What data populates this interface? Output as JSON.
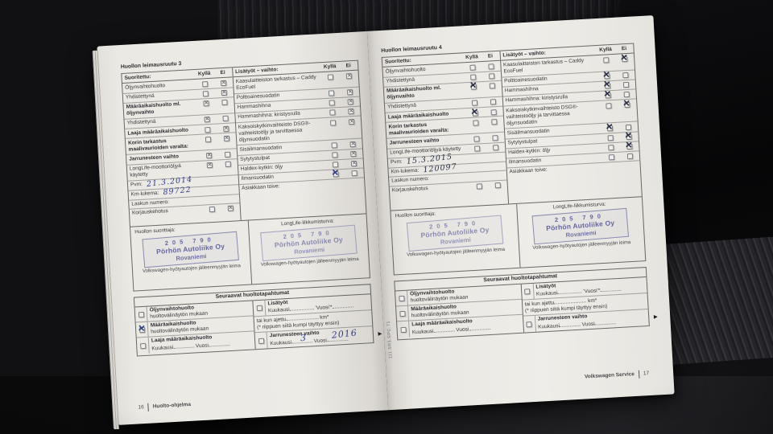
{
  "photo": {
    "background_color": "#111113",
    "paper_color": "#edebe6",
    "stamp_color": "#64659f",
    "red_sticker_color": "#8f2a26"
  },
  "shared": {
    "columns": {
      "performed": "Suoritettu:",
      "yes": "Kyllä",
      "no": "Ei",
      "extras": "Lisätyöt – vaihto:"
    },
    "performed_rows": [
      {
        "label": "Öljynvaihtohuolto",
        "bold": false
      },
      {
        "label": "Yhdistettynä",
        "bold": false
      },
      {
        "label": "Määräaikaishuolto ml. öljynvaihto",
        "bold": true
      },
      {
        "label": "Yhdistettynä",
        "bold": false
      },
      {
        "label": "Laaja määräaikaishuolto",
        "bold": true
      },
      {
        "label": "Korin tarkastus maalivaurioiden varalta:",
        "bold": true
      },
      {
        "label": "Jarrunesteen vaihto",
        "bold": true
      },
      {
        "label": "LongLife-moottoriöljyä käytetty",
        "bold": false
      }
    ],
    "extras_rows": [
      "Kaasulaitteiston tarkastus – Caddy EcoFuel",
      "Polttoainesuodatin",
      "Hammashihna",
      "Hammashihna: kiristysrulla",
      "Kaksoiskytkinvaihteisto DSG®-vaihteistoöljy ja tarvittaessa öljynsuodatin",
      "Sisäilmansuodatin",
      "Sytytystulpat",
      "Haldex-kytkin: öljy",
      "Ilmansuodatin"
    ],
    "fields": {
      "date": "Pvm:",
      "km": "Km-lukema:",
      "invoice": "Laskun numero:",
      "repair_note": "Korjauskehotus",
      "customer_wish": "Asiakkaan toive:"
    },
    "stamp_area": {
      "performer": "Huollon suorittaja:",
      "longlife": "LongLife-liikkumisturva:",
      "stamp_line1": "205  790",
      "stamp_line2": "Pörhön Autoliike Oy",
      "stamp_line3": "Rovaniemi",
      "caption": "Volkswagen-hyötyautojen jälleenmyyjän leima"
    },
    "next_section": {
      "title": "Seuraavat huoltotapahtumat",
      "oil_title": "Öljynvaihtohuolto",
      "oil_sub": "huoltovälinäytön mukaan",
      "maint_title": "Määräaikaishuolto",
      "maint_sub": "huoltovälinäytön mukaan",
      "large_title": "Laaja määräaikaishuolto",
      "extras_title": "Lisätyöt",
      "brake_title": "Jarrunesteen vaihto",
      "month_label": "Kuukausi",
      "year_label": "Vuosi",
      "year_star_label": "'Vuosi'*",
      "driven_prefix": "tai kun ajettu",
      "driven_unit": "km*",
      "driven_note": "(* riippuen siitä kumpi täyttyy ensin)"
    },
    "spine_code": "111.5R3.SPC.71",
    "arrow": "►"
  },
  "pages": {
    "left": {
      "title": "Huollon leimausruutu 3",
      "pen_color": "#2c3a8a",
      "performed_marks": [
        {
          "yes": "",
          "no": "print"
        },
        {
          "yes": "",
          "no": "print"
        },
        {
          "yes": "print",
          "no": ""
        },
        {
          "yes": "print",
          "no": ""
        },
        {
          "yes": "",
          "no": "print"
        },
        {
          "yes": "",
          "no": "print"
        },
        {
          "yes": "print",
          "no": ""
        },
        {
          "yes": "print",
          "no": ""
        }
      ],
      "repair_marks": {
        "yes": "",
        "no": "print"
      },
      "extras_marks": [
        {
          "yes": "",
          "no": "print"
        },
        {
          "yes": "",
          "no": "print"
        },
        {
          "yes": "",
          "no": "print"
        },
        {
          "yes": "",
          "no": "print"
        },
        {
          "yes": "",
          "no": "print"
        },
        {
          "yes": "",
          "no": "print"
        },
        {
          "yes": "",
          "no": "print"
        },
        {
          "yes": "",
          "no": "print"
        },
        {
          "yes": "pen",
          "no": ""
        }
      ],
      "date_value": "21.3.2014",
      "km_value": "89722",
      "next": {
        "oil": "",
        "maint": "pen",
        "large": "",
        "extras": "",
        "brake": "",
        "brake_month": "3",
        "brake_year": "2016"
      },
      "footer_page": "16",
      "footer_text": "Huolto-ohjelma"
    },
    "right": {
      "title": "Huollon leimausruutu 4",
      "pen_color": "#272c45",
      "performed_marks": [
        {
          "yes": "",
          "no": ""
        },
        {
          "yes": "",
          "no": ""
        },
        {
          "yes": "pen",
          "no": ""
        },
        {
          "yes": "",
          "no": ""
        },
        {
          "yes": "pen",
          "no": ""
        },
        {
          "yes": "",
          "no": ""
        },
        {
          "yes": "",
          "no": ""
        },
        {
          "yes": "",
          "no": ""
        }
      ],
      "repair_marks": {
        "yes": "",
        "no": ""
      },
      "extras_marks": [
        {
          "yes": "",
          "no": "pen"
        },
        {
          "yes": "pen",
          "no": ""
        },
        {
          "yes": "pen",
          "no": ""
        },
        {
          "yes": "pen",
          "no": ""
        },
        {
          "yes": "",
          "no": "pen"
        },
        {
          "yes": "pen",
          "no": ""
        },
        {
          "yes": "",
          "no": "pen"
        },
        {
          "yes": "",
          "no": "pen"
        },
        {
          "yes": "",
          "no": ""
        }
      ],
      "date_value": "15.3.2015",
      "km_value": "120097",
      "next": {
        "oil": "",
        "maint": "",
        "large": "",
        "extras": "",
        "brake": "",
        "brake_month": "",
        "brake_year": ""
      },
      "footer_page": "17",
      "footer_text": "Volkswagen Service"
    }
  }
}
